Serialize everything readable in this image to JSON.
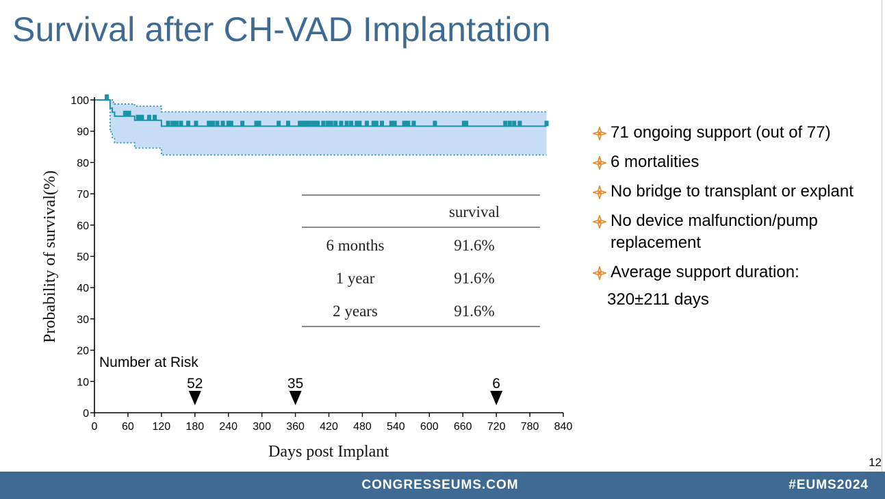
{
  "slide": {
    "title": "Survival after CH-VAD Implantation",
    "page_number": "12"
  },
  "footer": {
    "site": "CONGRESSEUMS.COM",
    "hashtag": "#EUMS2024"
  },
  "bullets": [
    {
      "text": "71 ongoing support (out of 77)",
      "icon": "orange-flourish-icon"
    },
    {
      "text": "6 mortalities",
      "icon": "orange-flourish-icon"
    },
    {
      "text": "No bridge to transplant or explant",
      "icon": "orange-flourish-icon"
    },
    {
      "text": "No device malfunction/pump replacement",
      "icon": "orange-flourish-icon"
    },
    {
      "text": "Average support duration:",
      "icon": "orange-flourish-icon",
      "continuation": "320±211 days"
    }
  ],
  "colors": {
    "title": "#3f6a93",
    "footer_bg": "#3f6a93",
    "curve": "#1a93a6",
    "ci_band": "#c7dcf5",
    "ci_border": "#1a93a6",
    "bullet": "#e8892a"
  },
  "chart_data": {
    "type": "line",
    "subtype": "kaplan-meier",
    "xlabel": "Days post Implant",
    "ylabel": "Probability of survival(%)",
    "xlim": [
      0,
      840
    ],
    "ylim": [
      0,
      100
    ],
    "xticks": [
      0,
      60,
      120,
      180,
      240,
      300,
      360,
      420,
      480,
      540,
      600,
      660,
      720,
      780,
      840
    ],
    "yticks": [
      0,
      10,
      20,
      30,
      40,
      50,
      60,
      70,
      80,
      90,
      100
    ],
    "grid": false,
    "series": [
      {
        "role": "survival",
        "x": [
          0,
          28,
          32,
          36,
          72,
          120,
          810
        ],
        "y": [
          100,
          97.4,
          96.1,
          94.8,
          93.5,
          91.6,
          91.6
        ]
      },
      {
        "role": "upper-ci",
        "x": [
          0,
          28,
          32,
          36,
          72,
          120,
          810
        ],
        "y": [
          100,
          100,
          99.3,
          98.7,
          98.0,
          96.2,
          96.2
        ]
      },
      {
        "role": "lower-ci",
        "x": [
          0,
          28,
          32,
          36,
          72,
          120,
          810
        ],
        "y": [
          100,
          89.8,
          88.0,
          86.3,
          84.6,
          82.4,
          82.4
        ]
      }
    ],
    "censor_marks_x": [
      22,
      55,
      62,
      78,
      85,
      98,
      108,
      132,
      140,
      147,
      155,
      168,
      182,
      205,
      212,
      220,
      230,
      240,
      245,
      265,
      290,
      295,
      330,
      347,
      368,
      372,
      376,
      380,
      384,
      390,
      396,
      400,
      410,
      418,
      424,
      432,
      442,
      452,
      460,
      470,
      475,
      488,
      500,
      505,
      515,
      532,
      538,
      555,
      562,
      572,
      610,
      662,
      666,
      736,
      744,
      752,
      762,
      810
    ],
    "risk_table_title": "Number at Risk",
    "number_at_risk": [
      {
        "x": 180,
        "n": "52"
      },
      {
        "x": 360,
        "n": "35"
      },
      {
        "x": 720,
        "n": "6"
      }
    ],
    "inset_table": {
      "header": [
        "",
        "survival"
      ],
      "rows": [
        [
          "6 months",
          "91.6%"
        ],
        [
          "1 year",
          "91.6%"
        ],
        [
          "2 years",
          "91.6%"
        ]
      ]
    }
  }
}
